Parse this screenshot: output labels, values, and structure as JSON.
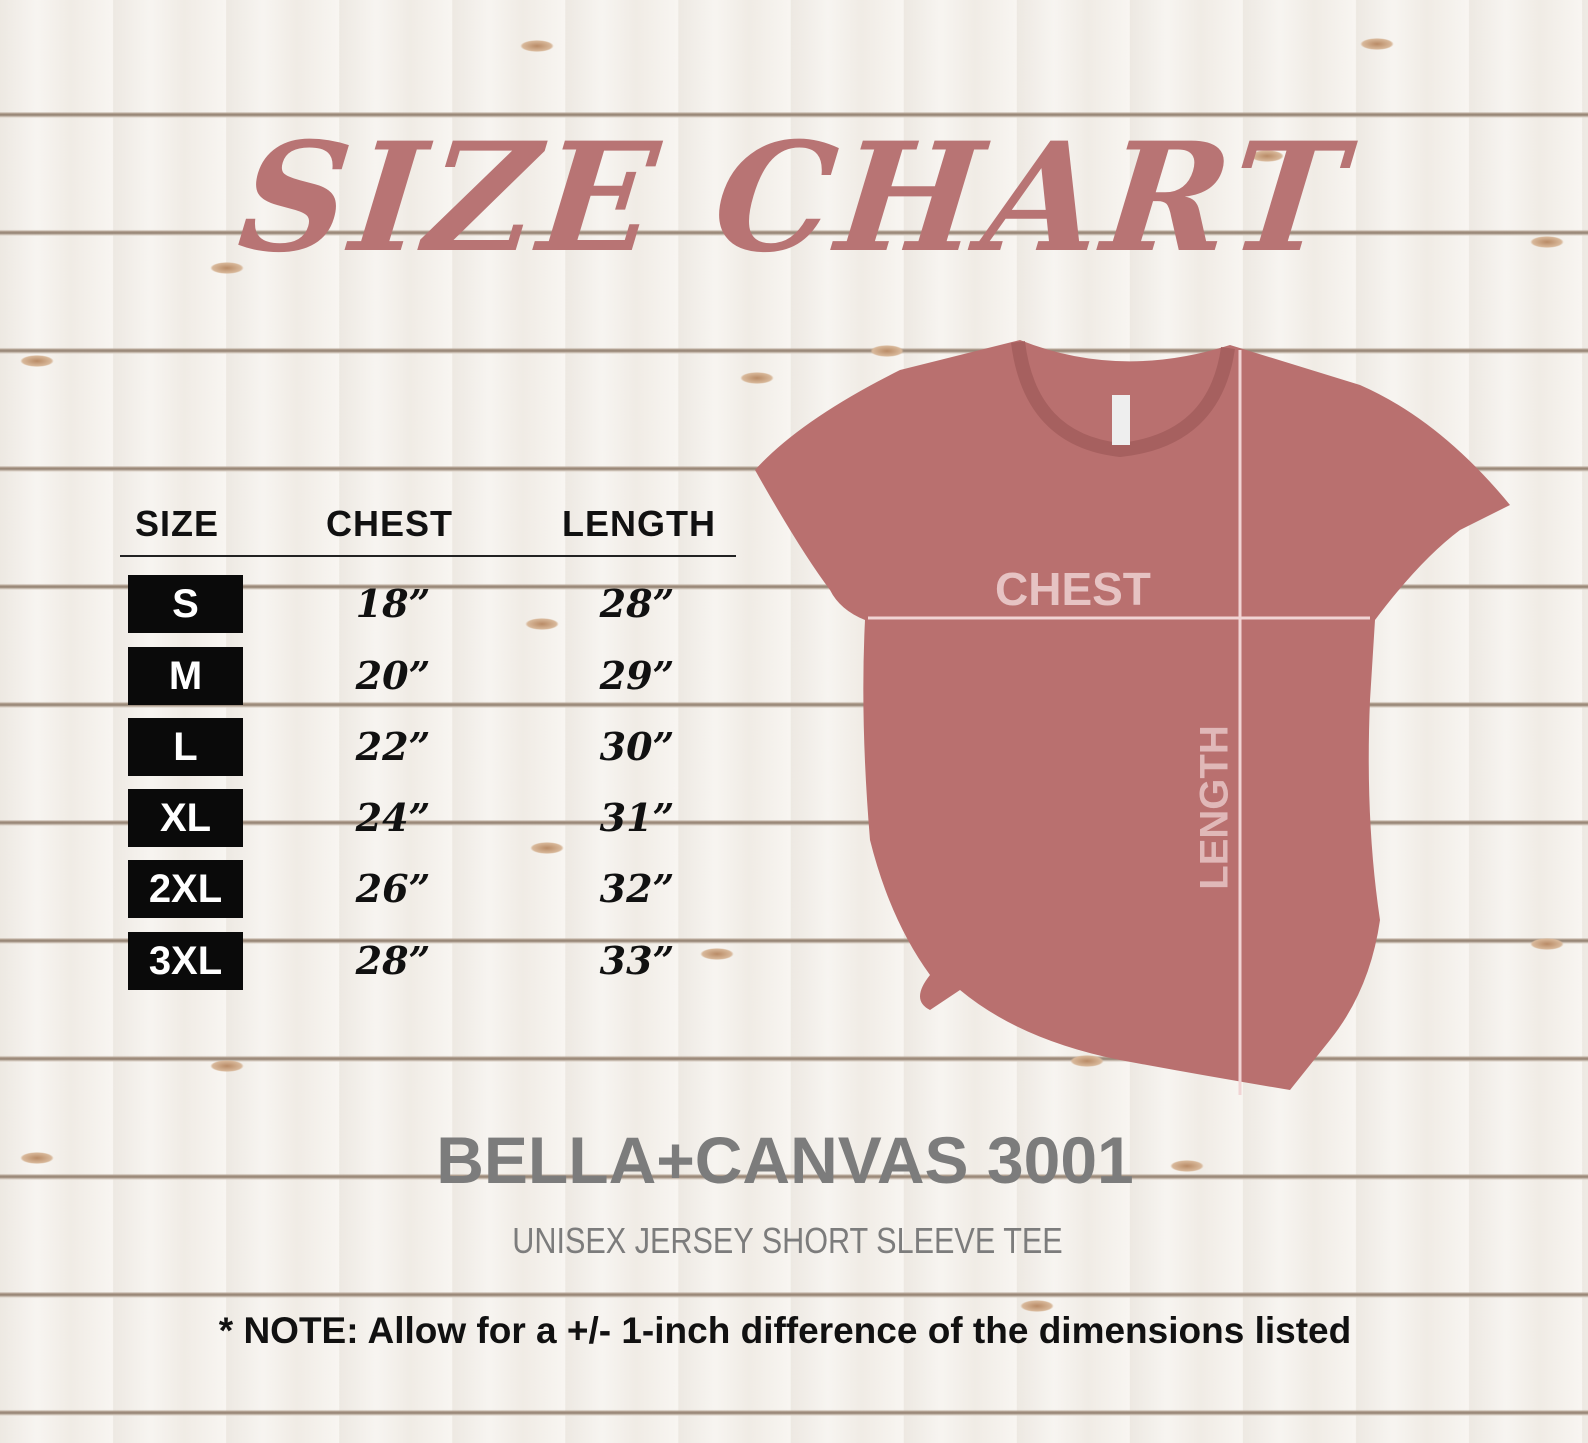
{
  "title": "SIZE CHART",
  "table": {
    "headers": [
      "SIZE",
      "CHEST",
      "LENGTH"
    ],
    "rows": [
      {
        "size": "S",
        "chest": "18”",
        "length": "28”"
      },
      {
        "size": "M",
        "chest": "20”",
        "length": "29”"
      },
      {
        "size": "L",
        "chest": "22”",
        "length": "30”"
      },
      {
        "size": "XL",
        "chest": "24”",
        "length": "31”"
      },
      {
        "size": "2XL",
        "chest": "26”",
        "length": "32”"
      },
      {
        "size": "3XL",
        "chest": "28”",
        "length": "33”"
      }
    ]
  },
  "shirt": {
    "chest_label": "CHEST",
    "length_label": "LENGTH",
    "color": "#b9706f"
  },
  "brand": "BELLA+CANVAS 3001",
  "subtitle": "UNISEX JERSEY SHORT SLEEVE TEE",
  "note": "* NOTE: Allow for a +/- 1-inch difference of the dimensions listed",
  "colors": {
    "title": "#b87474",
    "brand": "#7c7c7c"
  }
}
